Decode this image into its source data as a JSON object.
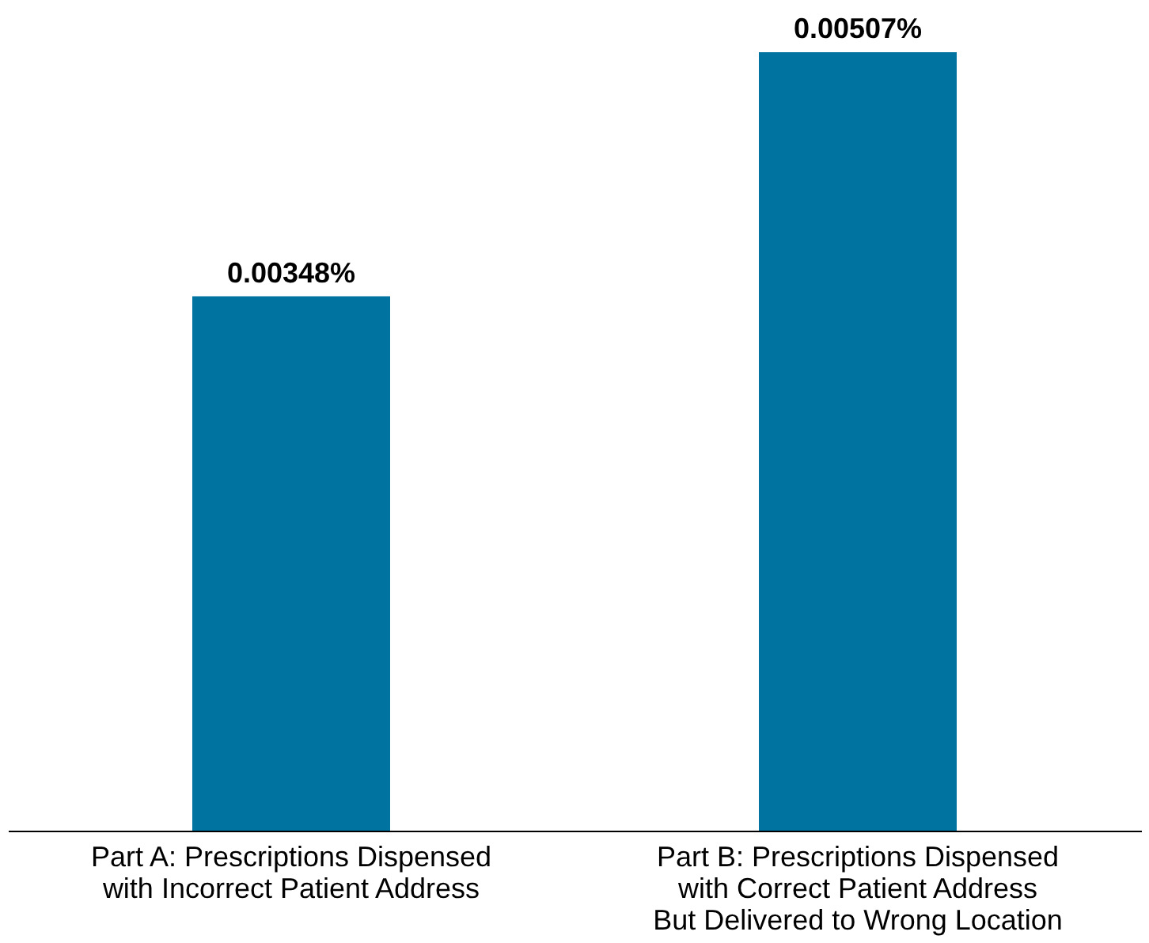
{
  "chart_data": {
    "type": "bar",
    "categories": [
      "Part A: Prescriptions Dispensed with Incorrect Patient Address",
      "Part B: Prescriptions Dispensed with Correct Patient Address But Delivered to Wrong Location"
    ],
    "values": [
      0.00348,
      0.00507
    ],
    "value_labels": [
      "0.00348%",
      "0.00507%"
    ],
    "color": "#0073a0"
  }
}
